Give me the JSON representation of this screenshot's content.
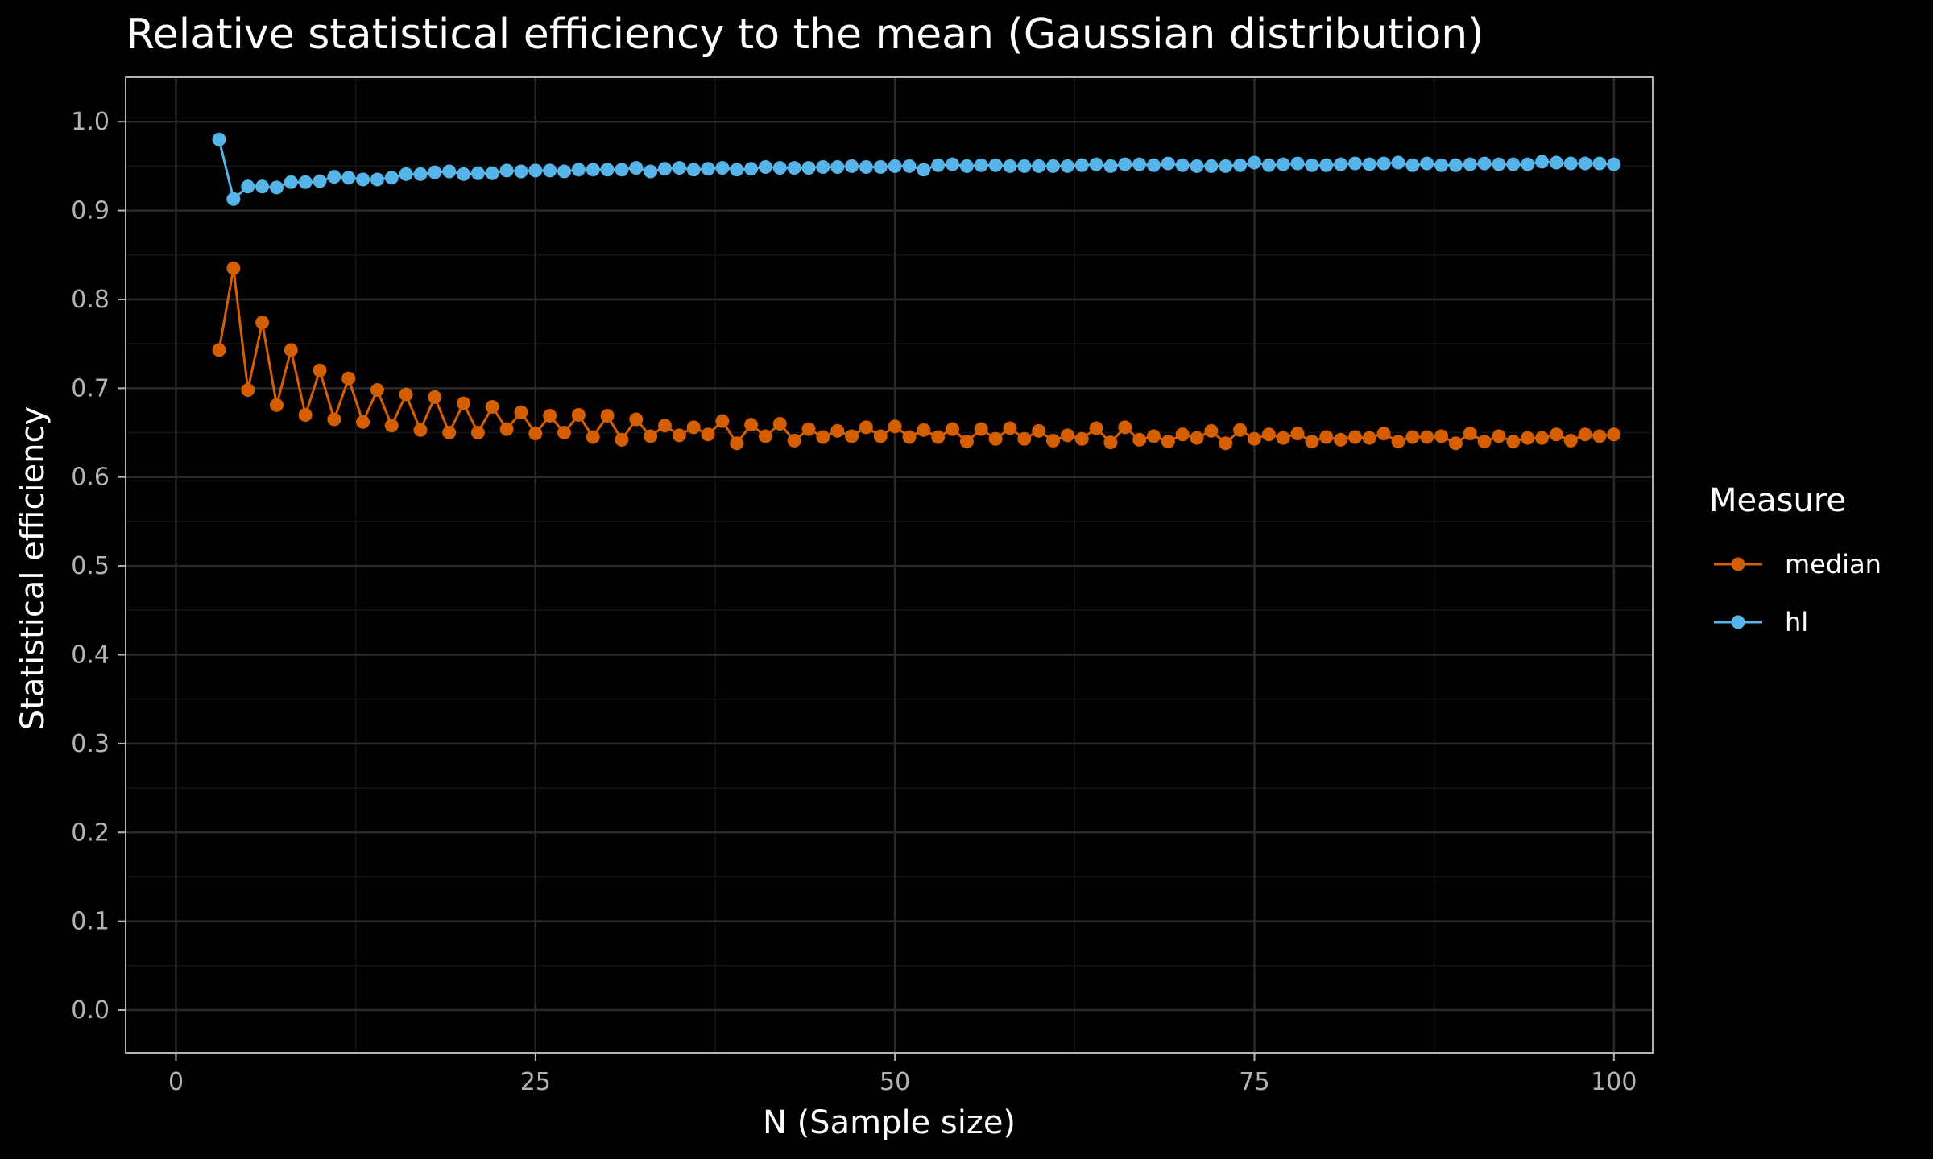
{
  "chart_data": {
    "type": "line",
    "title": "Relative statistical efficiency to the mean (Gaussian distribution)",
    "xlabel": "N (Sample size)",
    "ylabel": "Statistical efficiency",
    "xlim": [
      -3.5,
      102.7
    ],
    "ylim": [
      -0.048,
      1.05
    ],
    "x_ticks": [
      0,
      25,
      50,
      75,
      100
    ],
    "x_tick_labels": [
      "0",
      "25",
      "50",
      "75",
      "100"
    ],
    "y_ticks": [
      0,
      0.1,
      0.2,
      0.3,
      0.4,
      0.5,
      0.6,
      0.7,
      0.8,
      0.9,
      1.0
    ],
    "y_tick_labels": [
      "0.0",
      "0.1",
      "0.2",
      "0.3",
      "0.4",
      "0.5",
      "0.6",
      "0.7",
      "0.8",
      "0.9",
      "1.0"
    ],
    "grid": true,
    "legend": {
      "title": "Measure",
      "position": "right"
    },
    "x": [
      3,
      4,
      5,
      6,
      7,
      8,
      9,
      10,
      11,
      12,
      13,
      14,
      15,
      16,
      17,
      18,
      19,
      20,
      21,
      22,
      23,
      24,
      25,
      26,
      27,
      28,
      29,
      30,
      31,
      32,
      33,
      34,
      35,
      36,
      37,
      38,
      39,
      40,
      41,
      42,
      43,
      44,
      45,
      46,
      47,
      48,
      49,
      50,
      51,
      52,
      53,
      54,
      55,
      56,
      57,
      58,
      59,
      60,
      61,
      62,
      63,
      64,
      65,
      66,
      67,
      68,
      69,
      70,
      71,
      72,
      73,
      74,
      75,
      76,
      77,
      78,
      79,
      80,
      81,
      82,
      83,
      84,
      85,
      86,
      87,
      88,
      89,
      90,
      91,
      92,
      93,
      94,
      95,
      96,
      97,
      98,
      99,
      100
    ],
    "series": [
      {
        "name": "median",
        "color": "#d55e00",
        "values": [
          0.743,
          0.835,
          0.698,
          0.774,
          0.681,
          0.743,
          0.67,
          0.72,
          0.665,
          0.711,
          0.662,
          0.698,
          0.658,
          0.693,
          0.653,
          0.69,
          0.65,
          0.683,
          0.65,
          0.679,
          0.654,
          0.673,
          0.649,
          0.669,
          0.65,
          0.67,
          0.645,
          0.669,
          0.642,
          0.665,
          0.646,
          0.658,
          0.647,
          0.656,
          0.648,
          0.663,
          0.638,
          0.659,
          0.646,
          0.66,
          0.641,
          0.654,
          0.645,
          0.652,
          0.646,
          0.656,
          0.646,
          0.657,
          0.645,
          0.653,
          0.645,
          0.654,
          0.64,
          0.654,
          0.643,
          0.655,
          0.643,
          0.652,
          0.641,
          0.647,
          0.643,
          0.655,
          0.639,
          0.656,
          0.642,
          0.646,
          0.64,
          0.648,
          0.644,
          0.652,
          0.638,
          0.653,
          0.643,
          0.648,
          0.644,
          0.649,
          0.64,
          0.645,
          0.642,
          0.645,
          0.644,
          0.649,
          0.64,
          0.645,
          0.645,
          0.646,
          0.638,
          0.649,
          0.64,
          0.646,
          0.64,
          0.644,
          0.644,
          0.648,
          0.641,
          0.648,
          0.646,
          0.648
        ]
      },
      {
        "name": "hl",
        "color": "#56b4e9",
        "values": [
          0.98,
          0.913,
          0.927,
          0.927,
          0.926,
          0.932,
          0.932,
          0.933,
          0.938,
          0.937,
          0.935,
          0.935,
          0.937,
          0.941,
          0.941,
          0.943,
          0.944,
          0.941,
          0.942,
          0.942,
          0.945,
          0.944,
          0.945,
          0.945,
          0.944,
          0.946,
          0.946,
          0.946,
          0.946,
          0.948,
          0.944,
          0.947,
          0.948,
          0.946,
          0.947,
          0.948,
          0.946,
          0.947,
          0.949,
          0.948,
          0.948,
          0.948,
          0.949,
          0.949,
          0.95,
          0.949,
          0.949,
          0.95,
          0.95,
          0.946,
          0.951,
          0.952,
          0.95,
          0.951,
          0.951,
          0.95,
          0.95,
          0.95,
          0.95,
          0.95,
          0.951,
          0.952,
          0.95,
          0.952,
          0.952,
          0.951,
          0.953,
          0.951,
          0.95,
          0.95,
          0.95,
          0.951,
          0.954,
          0.951,
          0.952,
          0.953,
          0.951,
          0.951,
          0.952,
          0.953,
          0.952,
          0.953,
          0.954,
          0.951,
          0.953,
          0.951,
          0.951,
          0.952,
          0.953,
          0.952,
          0.952,
          0.952,
          0.955,
          0.954,
          0.953,
          0.953,
          0.953,
          0.952
        ]
      }
    ]
  }
}
